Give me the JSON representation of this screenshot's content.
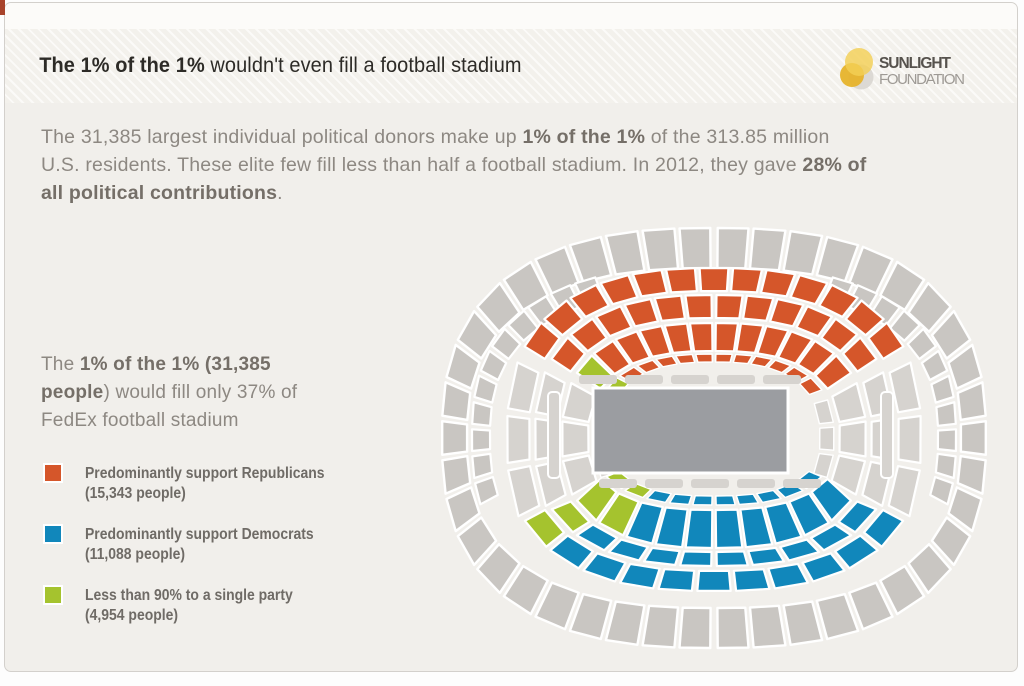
{
  "header": {
    "title_bold": "The 1% of the 1%",
    "title_rest": " wouldn't even fill a football stadium"
  },
  "logo": {
    "line1": "SUNLIGHT",
    "line2": "FOUNDATION"
  },
  "intro": {
    "p1": "The 31,385 largest individual political donors make up ",
    "p2": "1% of the 1%",
    "p3": " of the 313.85 million U.S. residents. These elite few fill less than half a football stadium. In 2012, they gave ",
    "p4": "28% of all political contributions",
    "p5": "."
  },
  "aside": {
    "p1": "The ",
    "p2": "1% of the 1% (31,385 people",
    "p3": ") would fill only 37% of FedEx football stadium"
  },
  "legend": {
    "items": [
      {
        "color": "#d5562a",
        "label": "Predominantly support Republicans",
        "sub": "(15,343 people)"
      },
      {
        "color": "#1187bb",
        "label": "Predominantly support Democrats",
        "sub": "(11,088 people)"
      },
      {
        "color": "#a5c32e",
        "label": "Less than 90% to a single party",
        "sub": "(4,954 people)"
      }
    ]
  },
  "stadium": {
    "colors": {
      "rep": "#d5562a",
      "dem": "#1187bb",
      "split": "#a5c32e",
      "gray": "#c9c6c2",
      "side": "#d6d3cf",
      "field": "#9b9da1"
    },
    "sections": {
      "top_row_outer": [
        "rep",
        "rep",
        "rep",
        "rep",
        "rep",
        "rep",
        "rep",
        "rep",
        "rep",
        "rep",
        "rep",
        "rep",
        "rep"
      ],
      "top_row_inner": [
        "rep",
        "rep",
        "rep",
        "rep",
        "rep",
        "rep",
        "rep",
        "rep",
        "rep",
        "rep",
        "rep",
        "rep"
      ],
      "top_wedges": [
        "split",
        "rep",
        "rep",
        "rep",
        "rep",
        "rep",
        "rep",
        "rep",
        "rep",
        "rep",
        "rep",
        "rep"
      ],
      "top_dashes": [
        "split",
        "rep",
        "rep",
        "rep",
        "rep",
        "rep",
        "rep",
        "rep",
        "rep",
        "rep",
        "rep",
        "rep"
      ],
      "bottom_wedges": [
        "split",
        "split",
        "dem",
        "dem",
        "dem",
        "dem",
        "dem",
        "dem",
        "dem",
        "dem"
      ],
      "bottom_dashes": [
        "split",
        "split",
        "dem",
        "dem",
        "dem",
        "dem",
        "dem",
        "dem",
        "dem",
        "dem"
      ],
      "bottom_row_inner": [
        "split",
        "dem",
        "dem",
        "dem",
        "dem",
        "dem",
        "dem",
        "dem",
        "dem",
        "dem"
      ],
      "bottom_row_outer": [
        "split",
        "dem",
        "dem",
        "dem",
        "dem",
        "dem",
        "dem",
        "dem",
        "dem",
        "dem",
        "dem"
      ]
    }
  },
  "chart_data": {
    "type": "pie",
    "title": "The 1% of the 1% wouldn't even fill a football stadium",
    "categories": [
      "Predominantly support Republicans",
      "Predominantly support Democrats",
      "Less than 90% to a single party"
    ],
    "values": [
      15343,
      11088,
      4954
    ],
    "total_donors": 31385,
    "stadium_fill_pct": 37,
    "stadium_name": "FedEx football stadium",
    "share_of_all_contributions_pct": 28,
    "us_population_millions": 313.85,
    "year": 2012,
    "legend_position": "left"
  }
}
